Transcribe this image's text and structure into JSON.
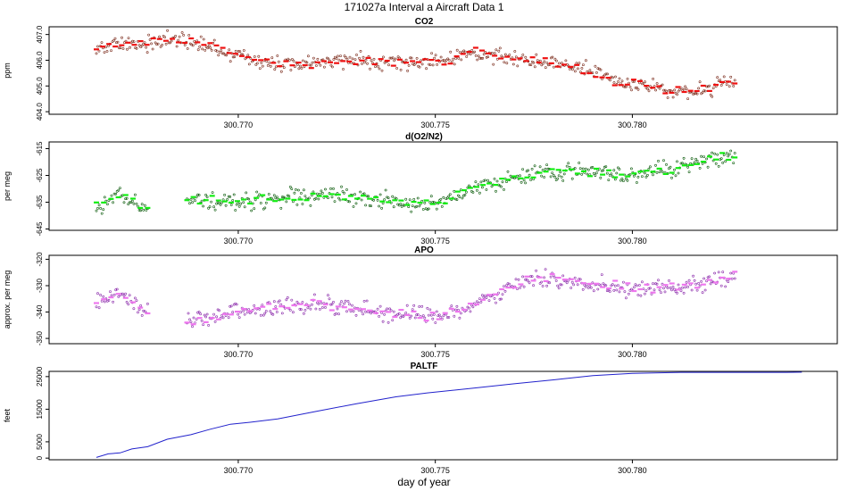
{
  "page_title": "171027a   Interval a Aircraft Data 1",
  "xlabel": "day of year",
  "colors": {
    "co2": "#ee1111",
    "co2_points": "#7a2a1a",
    "o2": "#11ee11",
    "o2_points": "#0a5a0a",
    "apo": "#ee77ee",
    "apo_points": "#8a2aaa",
    "paltf": "#2222cc"
  },
  "chart_data": [
    {
      "type": "scatter",
      "title": "CO2",
      "ylabel": "ppm",
      "ylim": [
        403.9,
        407.3
      ],
      "xlim": [
        300.7652,
        300.7852
      ],
      "xticks": [
        "300.770",
        "300.775",
        "300.780"
      ],
      "yticks": [
        "404.0",
        "405.0",
        "406.0",
        "407.0"
      ],
      "series": [
        {
          "name": "CO2 samples",
          "t0": 300.7664,
          "t1": 300.7826,
          "coverage": [
            [
              300.7664,
              300.7826
            ]
          ],
          "trend": [
            [
              300.7664,
              406.5
            ],
            [
              300.7685,
              406.8
            ],
            [
              300.77,
              406.2
            ],
            [
              300.771,
              405.8
            ],
            [
              300.773,
              406.0
            ],
            [
              300.775,
              405.9
            ],
            [
              300.776,
              406.3
            ],
            [
              300.7775,
              406.0
            ],
            [
              300.7785,
              405.8
            ],
            [
              300.7795,
              405.2
            ],
            [
              300.7805,
              405.0
            ],
            [
              300.7815,
              404.7
            ],
            [
              300.7826,
              405.2
            ]
          ],
          "scatter": 0.35
        }
      ]
    },
    {
      "type": "scatter",
      "title": "d(O2/N2)",
      "ylabel": "per meg",
      "ylim": [
        -645.5,
        -612.5
      ],
      "xlim": [
        300.7652,
        300.7852
      ],
      "xticks": [
        "300.770",
        "300.775",
        "300.780"
      ],
      "yticks": [
        "-645",
        "-635",
        "-625",
        "-615"
      ],
      "series": [
        {
          "name": "O2 samples",
          "t0": 300.7664,
          "t1": 300.7826,
          "coverage": [
            [
              300.7664,
              300.7677
            ],
            [
              300.7687,
              300.7826
            ]
          ],
          "trend": [
            [
              300.7664,
              -636
            ],
            [
              300.767,
              -632
            ],
            [
              300.7677,
              -638
            ],
            [
              300.7687,
              -634
            ],
            [
              300.77,
              -635
            ],
            [
              300.772,
              -632
            ],
            [
              300.7735,
              -634
            ],
            [
              300.775,
              -636
            ],
            [
              300.776,
              -630
            ],
            [
              300.7775,
              -624
            ],
            [
              300.7785,
              -623
            ],
            [
              300.78,
              -625
            ],
            [
              300.7815,
              -621
            ],
            [
              300.7826,
              -617
            ]
          ],
          "scatter": 3.5
        }
      ]
    },
    {
      "type": "scatter",
      "title": "APO",
      "ylabel": "approx. per meg",
      "ylim": [
        -352,
        -318.5
      ],
      "xlim": [
        300.7652,
        300.7852
      ],
      "xticks": [
        "300.770",
        "300.775",
        "300.780"
      ],
      "yticks": [
        "-350",
        "-340",
        "-330",
        "-320"
      ],
      "series": [
        {
          "name": "APO samples",
          "t0": 300.7664,
          "t1": 300.7826,
          "coverage": [
            [
              300.7664,
              300.7677
            ],
            [
              300.7687,
              300.7826
            ]
          ],
          "trend": [
            [
              300.7664,
              -336
            ],
            [
              300.767,
              -333
            ],
            [
              300.7677,
              -340
            ],
            [
              300.7687,
              -344
            ],
            [
              300.77,
              -340
            ],
            [
              300.772,
              -337
            ],
            [
              300.7735,
              -340
            ],
            [
              300.775,
              -342
            ],
            [
              300.776,
              -337
            ],
            [
              300.7775,
              -327
            ],
            [
              300.7785,
              -328
            ],
            [
              300.78,
              -331
            ],
            [
              300.7815,
              -330
            ],
            [
              300.7826,
              -326
            ]
          ],
          "scatter": 3.5
        }
      ]
    },
    {
      "type": "line",
      "title": "PALTF",
      "ylabel": "feet",
      "ylim": [
        -500,
        26600
      ],
      "xlim": [
        300.7652,
        300.7852
      ],
      "xticks": [
        "300.770",
        "300.775",
        "300.780"
      ],
      "yticks": [
        "0",
        "5000",
        "15000",
        "25000"
      ],
      "series": [
        {
          "name": "PALTF",
          "points": [
            [
              300.7664,
              200
            ],
            [
              300.7667,
              1300
            ],
            [
              300.767,
              1600
            ],
            [
              300.7673,
              2800
            ],
            [
              300.7677,
              3500
            ],
            [
              300.7682,
              5800
            ],
            [
              300.7688,
              7200
            ],
            [
              300.7693,
              8900
            ],
            [
              300.7698,
              10400
            ],
            [
              300.7703,
              11000
            ],
            [
              300.771,
              12000
            ],
            [
              300.772,
              14400
            ],
            [
              300.773,
              16700
            ],
            [
              300.774,
              18800
            ],
            [
              300.7748,
              20000
            ],
            [
              300.776,
              21500
            ],
            [
              300.777,
              22800
            ],
            [
              300.778,
              24000
            ],
            [
              300.779,
              25300
            ],
            [
              300.78,
              26000
            ],
            [
              300.7813,
              26300
            ],
            [
              300.7826,
              26300
            ],
            [
              300.7839,
              26300
            ],
            [
              300.7843,
              26350
            ]
          ]
        }
      ]
    }
  ]
}
